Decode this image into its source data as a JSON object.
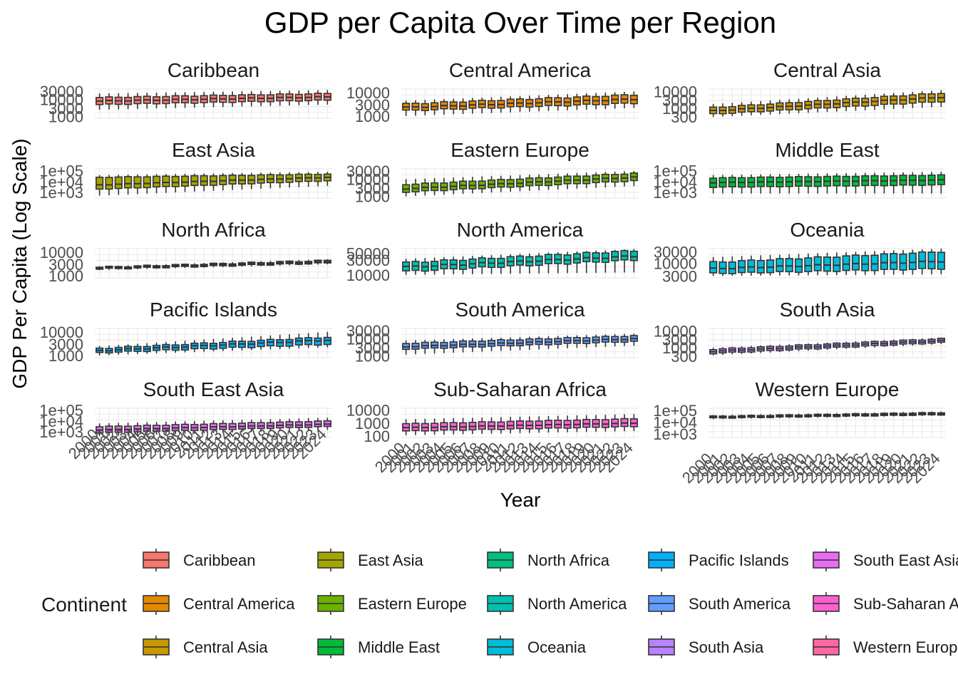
{
  "chart_data": {
    "type": "box",
    "title": "GDP per Capita Over Time per Region",
    "xlabel": "Year",
    "ylabel": "GDP Per Capita (Log Scale)",
    "y_scale": "log10",
    "grid": true,
    "legend": {
      "title": "Continent",
      "placement": "bottom",
      "entries": [
        {
          "name": "Caribbean",
          "color": "#F8766D"
        },
        {
          "name": "Central America",
          "color": "#E58700"
        },
        {
          "name": "Central Asia",
          "color": "#C99800"
        },
        {
          "name": "East Asia",
          "color": "#A3A500"
        },
        {
          "name": "Eastern Europe",
          "color": "#6BB100"
        },
        {
          "name": "Middle East",
          "color": "#00BA38"
        },
        {
          "name": "North Africa",
          "color": "#00BF7D"
        },
        {
          "name": "North America",
          "color": "#00C0AF"
        },
        {
          "name": "Oceania",
          "color": "#00BCD8"
        },
        {
          "name": "Pacific Islands",
          "color": "#00B0F6"
        },
        {
          "name": "South America",
          "color": "#619CFF"
        },
        {
          "name": "South Asia",
          "color": "#B983FF"
        },
        {
          "name": "South East Asia",
          "color": "#E76BF3"
        },
        {
          "name": "Sub-Saharan Africa",
          "color": "#FD61D1"
        },
        {
          "name": "Western Europe",
          "color": "#FF67A4"
        }
      ]
    },
    "x_categories": [
      "2000",
      "2001",
      "2002",
      "2003",
      "2004",
      "2005",
      "2006",
      "2007",
      "2008",
      "2009",
      "2010",
      "2011",
      "2012",
      "2013",
      "2014",
      "2015",
      "2016",
      "2017",
      "2018",
      "2019",
      "2020",
      "2021",
      "2022",
      "2023",
      "2024"
    ],
    "panels": [
      {
        "name": "Caribbean",
        "color": "#F8766D",
        "yticks": [
          1000,
          3000,
          10000,
          30000
        ],
        "yrange": [
          800,
          40000
        ],
        "start": {
          "q1": 5000,
          "med": 8000,
          "q3": 13000,
          "lo": 2500,
          "hi": 22000
        },
        "end": {
          "q1": 9000,
          "med": 14000,
          "q3": 22000,
          "lo": 5000,
          "hi": 35000
        }
      },
      {
        "name": "Central America",
        "color": "#E58700",
        "yticks": [
          1000,
          3000,
          10000
        ],
        "yrange": [
          800,
          14000
        ],
        "start": {
          "q1": 1700,
          "med": 2300,
          "q3": 3300,
          "lo": 1000,
          "hi": 4500
        },
        "end": {
          "q1": 3500,
          "med": 5200,
          "q3": 8000,
          "lo": 2200,
          "hi": 11000
        }
      },
      {
        "name": "Central Asia",
        "color": "#C99800",
        "yticks": [
          300,
          1000,
          3000,
          10000
        ],
        "yrange": [
          250,
          14000
        ],
        "start": {
          "q1": 450,
          "med": 700,
          "q3": 1100,
          "lo": 300,
          "hi": 1800
        },
        "end": {
          "q1": 2500,
          "med": 4500,
          "q3": 8000,
          "lo": 1200,
          "hi": 12000
        }
      },
      {
        "name": "East Asia",
        "color": "#A3A500",
        "yticks": [
          1000,
          10000,
          100000
        ],
        "yrange": [
          300,
          150000
        ],
        "start": {
          "q1": 2000,
          "med": 5000,
          "q3": 25000,
          "lo": 500,
          "hi": 40000
        },
        "end": {
          "q1": 12000,
          "med": 25000,
          "q3": 50000,
          "lo": 4000,
          "hi": 80000
        }
      },
      {
        "name": "Eastern Europe",
        "color": "#6BB100",
        "yticks": [
          1000,
          3000,
          10000,
          30000
        ],
        "yrange": [
          800,
          40000
        ],
        "start": {
          "q1": 1800,
          "med": 2800,
          "q3": 5000,
          "lo": 1000,
          "hi": 10000
        },
        "end": {
          "q1": 8000,
          "med": 13000,
          "q3": 22000,
          "lo": 4000,
          "hi": 30000
        }
      },
      {
        "name": "Middle East",
        "color": "#00BA38",
        "yticks": [
          1000,
          10000,
          100000
        ],
        "yrange": [
          300,
          150000
        ],
        "start": {
          "q1": 3000,
          "med": 8000,
          "q3": 22000,
          "lo": 800,
          "hi": 40000
        },
        "end": {
          "q1": 5000,
          "med": 14000,
          "q3": 40000,
          "lo": 800,
          "hi": 80000
        }
      },
      {
        "name": "North Africa",
        "color": "#00BF7D",
        "yticks": [
          1000,
          3000,
          10000
        ],
        "yrange": [
          800,
          14000
        ],
        "start": {
          "q1": 1900,
          "med": 2100,
          "q3": 2300,
          "lo": 1700,
          "hi": 2500
        },
        "end": {
          "q1": 3400,
          "med": 3800,
          "q3": 4400,
          "lo": 3000,
          "hi": 5000
        }
      },
      {
        "name": "North America",
        "color": "#00C0AF",
        "yticks": [
          10000,
          30000,
          50000
        ],
        "yrange": [
          8000,
          70000
        ],
        "start": {
          "q1": 13000,
          "med": 18000,
          "q3": 25000,
          "lo": 10000,
          "hi": 33000
        },
        "end": {
          "q1": 30000,
          "med": 40000,
          "q3": 60000,
          "lo": 12000,
          "hi": 68000
        }
      },
      {
        "name": "Oceania",
        "color": "#00BCD8",
        "yticks": [
          3000,
          10000,
          30000
        ],
        "yrange": [
          2500,
          40000
        ],
        "start": {
          "q1": 3800,
          "med": 6000,
          "q3": 11000,
          "lo": 3000,
          "hi": 18000
        },
        "end": {
          "q1": 6000,
          "med": 12000,
          "q3": 30000,
          "lo": 3500,
          "hi": 40000
        }
      },
      {
        "name": "Pacific Islands",
        "color": "#00B0F6",
        "yticks": [
          1000,
          3000,
          10000
        ],
        "yrange": [
          800,
          14000
        ],
        "start": {
          "q1": 1300,
          "med": 1600,
          "q3": 2000,
          "lo": 1000,
          "hi": 2500
        },
        "end": {
          "q1": 3000,
          "med": 4500,
          "q3": 6000,
          "lo": 2200,
          "hi": 10000
        }
      },
      {
        "name": "South America",
        "color": "#619CFF",
        "yticks": [
          1000,
          3000,
          10000,
          30000
        ],
        "yrange": [
          800,
          40000
        ],
        "start": {
          "q1": 2500,
          "med": 3500,
          "q3": 5500,
          "lo": 1200,
          "hi": 8000
        },
        "end": {
          "q1": 7000,
          "med": 10000,
          "q3": 15000,
          "lo": 4000,
          "hi": 20000
        }
      },
      {
        "name": "South Asia",
        "color": "#B983FF",
        "yticks": [
          300,
          1000,
          3000,
          10000
        ],
        "yrange": [
          250,
          14000
        ],
        "start": {
          "q1": 450,
          "med": 600,
          "q3": 800,
          "lo": 350,
          "hi": 1000
        },
        "end": {
          "q1": 2000,
          "med": 2600,
          "q3": 3400,
          "lo": 1600,
          "hi": 4000
        }
      },
      {
        "name": "South East Asia",
        "color": "#E76BF3",
        "yticks": [
          1000,
          10000,
          100000
        ],
        "yrange": [
          300,
          150000
        ],
        "start": {
          "q1": 800,
          "med": 1500,
          "q3": 3000,
          "lo": 400,
          "hi": 6000
        },
        "end": {
          "q1": 3000,
          "med": 5000,
          "q3": 10000,
          "lo": 1500,
          "hi": 20000
        }
      },
      {
        "name": "Sub-Saharan Africa",
        "color": "#FD61D1",
        "yticks": [
          100,
          1000,
          10000
        ],
        "yrange": [
          80,
          14000
        ],
        "start": {
          "q1": 250,
          "med": 450,
          "q3": 900,
          "lo": 120,
          "hi": 2000
        },
        "end": {
          "q1": 550,
          "med": 1000,
          "q3": 2200,
          "lo": 250,
          "hi": 5000
        }
      },
      {
        "name": "Western Europe",
        "color": "#FF67A4",
        "yticks": [
          1000,
          10000,
          100000
        ],
        "yrange": [
          500,
          150000
        ],
        "start": {
          "q1": 22000,
          "med": 26000,
          "q3": 32000,
          "lo": 18000,
          "hi": 40000
        },
        "end": {
          "q1": 42000,
          "med": 52000,
          "q3": 65000,
          "lo": 35000,
          "hi": 80000
        }
      }
    ]
  }
}
